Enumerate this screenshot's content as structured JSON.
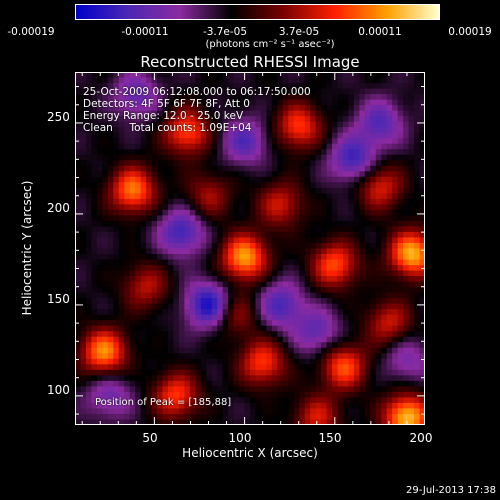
{
  "chart_data": {
    "type": "heatmap",
    "title": "Reconstructed RHESSI Image",
    "xlabel": "Heliocentric X (arcsec)",
    "ylabel": "Heliocentric Y (arcsec)",
    "xlim": [
      6,
      200
    ],
    "ylim": [
      84,
      278
    ],
    "x_ticks": [
      50,
      100,
      150,
      200
    ],
    "y_ticks": [
      100,
      150,
      200,
      250
    ],
    "colorbar": {
      "ticks": [
        "-0.00019",
        "-0.00011",
        "-3.7e-05",
        "3.7e-05",
        "0.00011",
        "0.00019"
      ],
      "unit": "(photons cm⁻² s⁻¹ asec⁻²)",
      "range": [
        -0.00019,
        0.00019
      ],
      "colors": [
        "#0000c8",
        "#4b28b4",
        "#8c2aa0",
        "#000000",
        "#7a0000",
        "#ff2000",
        "#ffa000",
        "#ffffd0"
      ]
    },
    "info_lines": [
      "25-Oct-2009 06:12:08.000 to 06:17:50.000",
      "Detectors: 4F 5F 6F 7F 8F, Att 0",
      "Energy Range: 12.0 - 25.0 keV",
      "Clean     Total counts: 1.09E+04"
    ],
    "peak_label": "Position of Peak = [185,88]",
    "peak_position": [
      185,
      88
    ],
    "sources": [
      {
        "x": 190,
        "y": 88,
        "amp": 1.0
      },
      {
        "x": 193,
        "y": 178,
        "amp": 0.95
      },
      {
        "x": 100,
        "y": 176,
        "amp": 0.9
      },
      {
        "x": 22,
        "y": 124,
        "amp": 0.85
      },
      {
        "x": 38,
        "y": 213,
        "amp": 0.8
      },
      {
        "x": 68,
        "y": 245,
        "amp": 0.7
      },
      {
        "x": 130,
        "y": 248,
        "amp": 0.65
      },
      {
        "x": 150,
        "y": 172,
        "amp": 0.7
      },
      {
        "x": 155,
        "y": 116,
        "amp": 0.7
      },
      {
        "x": 110,
        "y": 118,
        "amp": 0.65
      },
      {
        "x": 62,
        "y": 100,
        "amp": 0.65
      },
      {
        "x": 45,
        "y": 160,
        "amp": 0.45
      },
      {
        "x": 175,
        "y": 215,
        "amp": 0.55
      },
      {
        "x": 120,
        "y": 205,
        "amp": 0.5
      },
      {
        "x": 80,
        "y": 210,
        "amp": 0.4
      },
      {
        "x": 140,
        "y": 88,
        "amp": 0.5
      },
      {
        "x": 180,
        "y": 140,
        "amp": 0.5
      },
      {
        "x": 95,
        "y": 145,
        "amp": 0.4
      },
      {
        "x": 80,
        "y": 150,
        "amp": -0.75
      },
      {
        "x": 120,
        "y": 150,
        "amp": -0.55
      },
      {
        "x": 65,
        "y": 190,
        "amp": -0.6
      },
      {
        "x": 160,
        "y": 230,
        "amp": -0.6
      },
      {
        "x": 40,
        "y": 265,
        "amp": -0.45
      },
      {
        "x": 175,
        "y": 250,
        "amp": -0.5
      },
      {
        "x": 25,
        "y": 100,
        "amp": -0.4
      },
      {
        "x": 140,
        "y": 135,
        "amp": -0.45
      },
      {
        "x": 100,
        "y": 240,
        "amp": -0.5
      },
      {
        "x": 190,
        "y": 120,
        "amp": -0.35
      }
    ]
  },
  "footer_date": "29-Jul-2013 17:38"
}
